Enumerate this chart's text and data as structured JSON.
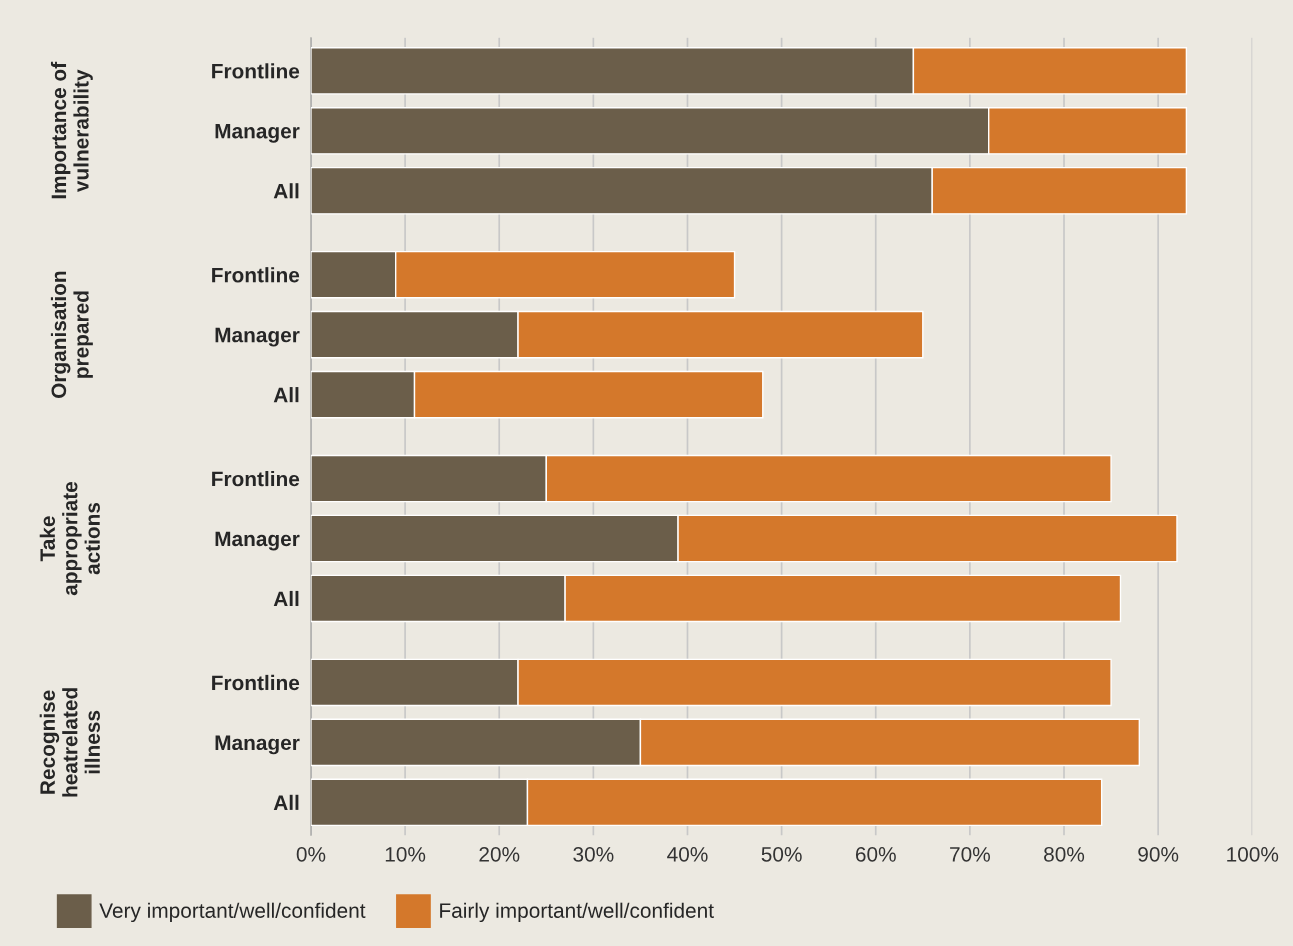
{
  "chart_data": {
    "type": "bar",
    "orientation": "horizontal",
    "stacked": true,
    "categories": [
      "Frontline",
      "Manager",
      "All",
      "Frontline",
      "Manager",
      "All",
      "Frontline",
      "Manager",
      "All",
      "Frontline",
      "Manager",
      "All"
    ],
    "series": [
      {
        "name": "Very important/well/confident",
        "color": "#6b5e4a",
        "values": [
          64,
          72,
          66,
          9,
          22,
          11,
          25,
          39,
          27,
          22,
          35,
          23
        ]
      },
      {
        "name": "Fairly important/well/confident",
        "color": "#d4782b",
        "values": [
          29,
          21,
          27,
          36,
          43,
          37,
          60,
          53,
          59,
          63,
          53,
          61
        ]
      }
    ],
    "xlim": [
      0,
      100
    ],
    "xticks": [
      {
        "value": 0,
        "label": "0%"
      },
      {
        "value": 10,
        "label": "10%"
      },
      {
        "value": 20,
        "label": "20%"
      },
      {
        "value": 30,
        "label": "30%"
      },
      {
        "value": 40,
        "label": "40%"
      },
      {
        "value": 50,
        "label": "50%"
      },
      {
        "value": 60,
        "label": "60%"
      },
      {
        "value": 70,
        "label": "70%"
      },
      {
        "value": 80,
        "label": "80%"
      },
      {
        "value": 90,
        "label": "90%"
      },
      {
        "value": 100,
        "label": "100%"
      }
    ],
    "annotations": [
      "Importance of\nvulnerability",
      "Organisation\nprepared",
      "Take\nappropriate\nactions",
      "Recognise\nheatrelated\nillness"
    ],
    "grid": "x",
    "legend": "bottom"
  }
}
